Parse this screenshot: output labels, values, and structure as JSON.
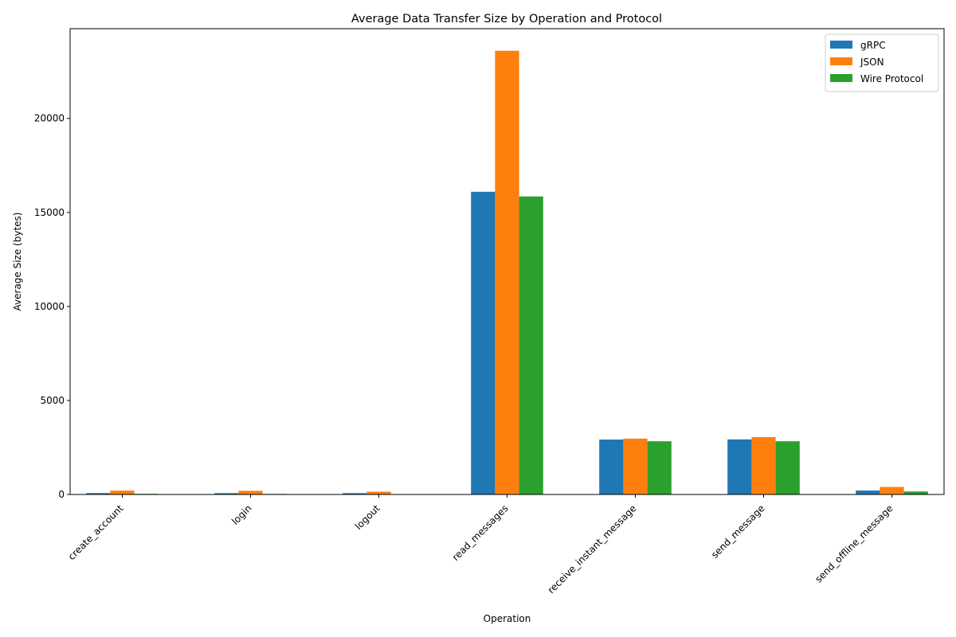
{
  "chart_data": {
    "type": "bar",
    "title": "Average Data Transfer Size by Operation and Protocol",
    "xlabel": "Operation",
    "ylabel": "Average Size (bytes)",
    "categories": [
      "create_account",
      "login",
      "logout",
      "read_messages",
      "receive_instant_message",
      "send_message",
      "send_offline_message"
    ],
    "series": [
      {
        "name": "gRPC",
        "color": "#1f77b4",
        "values": [
          75,
          70,
          70,
          16100,
          2920,
          2930,
          210
        ]
      },
      {
        "name": "JSON",
        "color": "#ff7f0e",
        "values": [
          205,
          195,
          150,
          23600,
          2970,
          3050,
          400
        ]
      },
      {
        "name": "Wire Protocol",
        "color": "#2ca02c",
        "values": [
          35,
          30,
          15,
          15850,
          2830,
          2830,
          160
        ]
      }
    ],
    "ylim": [
      0,
      24775
    ],
    "yticks": [
      0,
      5000,
      10000,
      15000,
      20000
    ],
    "grid": false,
    "legend_position": "top-right"
  }
}
